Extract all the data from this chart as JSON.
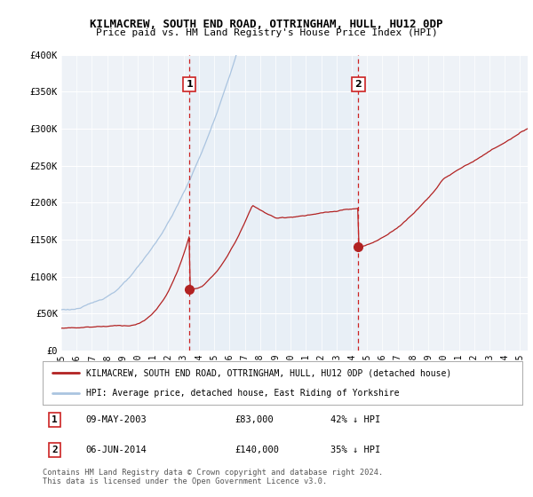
{
  "title": "KILMACREW, SOUTH END ROAD, OTTRINGHAM, HULL, HU12 0DP",
  "subtitle": "Price paid vs. HM Land Registry's House Price Index (HPI)",
  "ylim": [
    0,
    400000
  ],
  "yticks": [
    0,
    50000,
    100000,
    150000,
    200000,
    250000,
    300000,
    350000,
    400000
  ],
  "ytick_labels": [
    "£0",
    "£50K",
    "£100K",
    "£150K",
    "£200K",
    "£250K",
    "£300K",
    "£350K",
    "£400K"
  ],
  "sale1": {
    "date_label": "1",
    "x": 2003.37,
    "price": 83000,
    "date_str": "09-MAY-2003",
    "pct": "42% ↓ HPI"
  },
  "sale2": {
    "date_label": "2",
    "x": 2014.43,
    "price": 140000,
    "date_str": "06-JUN-2014",
    "pct": "35% ↓ HPI"
  },
  "hpi_color": "#aac4e0",
  "hpi_fill_color": "#ddeaf5",
  "price_color": "#b22222",
  "vline_color": "#cc2222",
  "background_color": "#eef2f7",
  "grid_color": "#ffffff",
  "legend_label_red": "KILMACREW, SOUTH END ROAD, OTTRINGHAM, HULL, HU12 0DP (detached house)",
  "legend_label_blue": "HPI: Average price, detached house, East Riding of Yorkshire",
  "footer1": "Contains HM Land Registry data © Crown copyright and database right 2024.",
  "footer2": "This data is licensed under the Open Government Licence v3.0."
}
